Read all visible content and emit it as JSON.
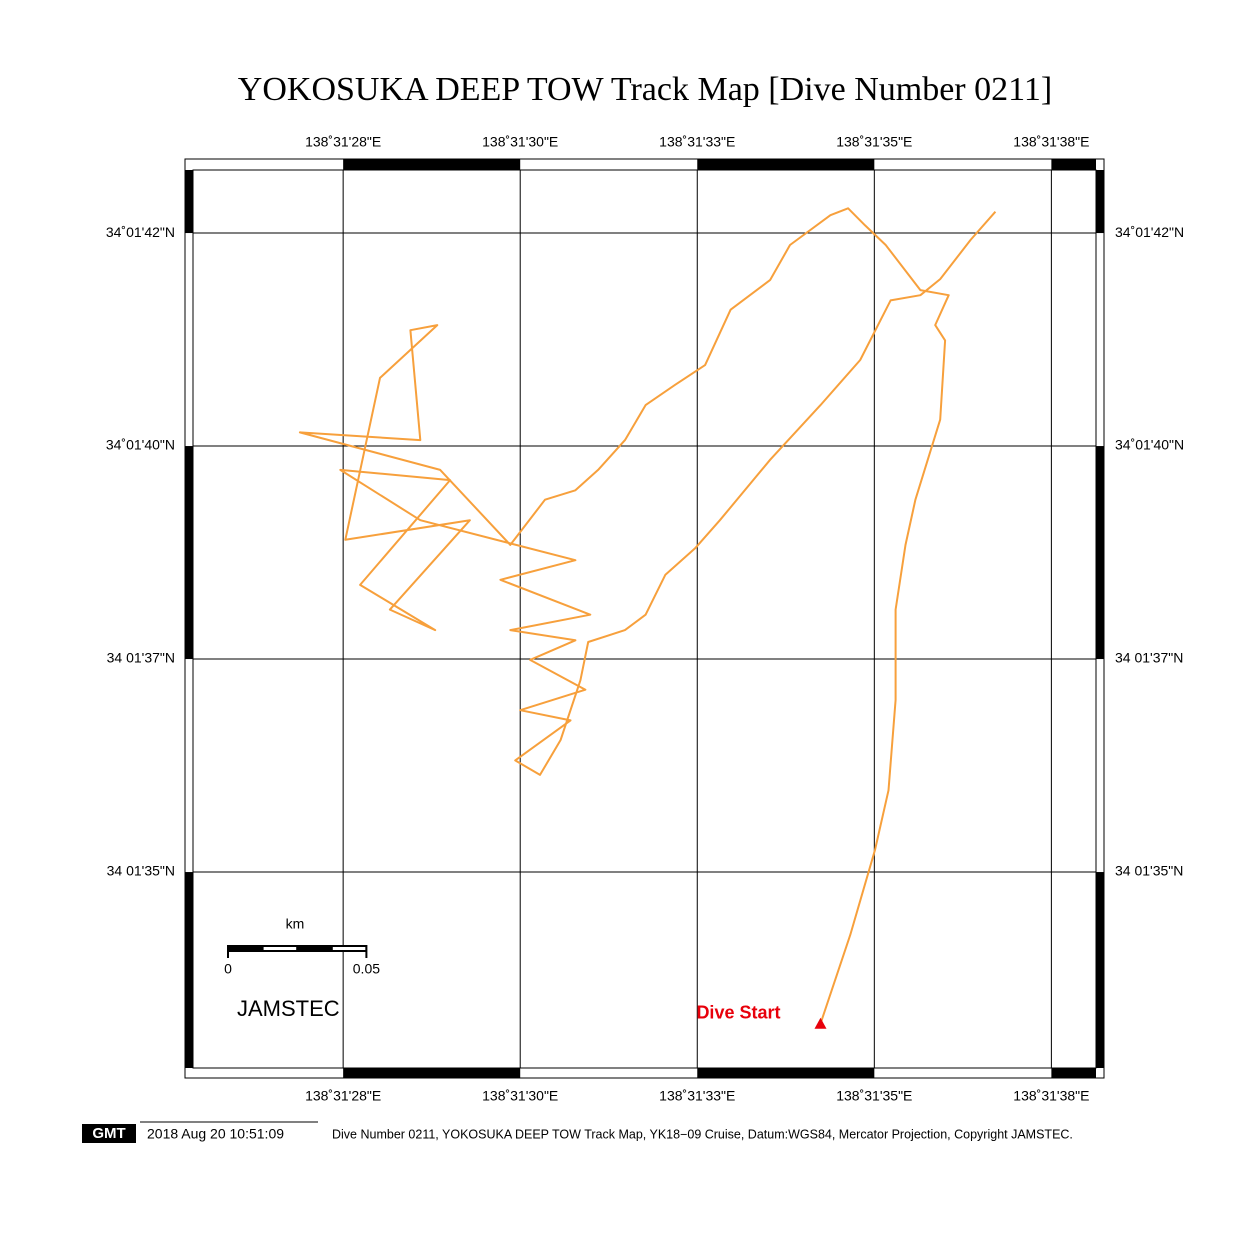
{
  "title": "YOKOSUKA DEEP TOW Track Map [Dive Number 0211]",
  "lonlim": [
    25.38,
    38.13
  ],
  "latlim": [
    32.7,
    43.24
  ],
  "lonticks": [
    {
      "value": 27.5,
      "label": "138˚31'28\"E"
    },
    {
      "value": 30,
      "label": "138˚31'30\"E"
    },
    {
      "value": 32.5,
      "label": "138˚31'33\"E"
    },
    {
      "value": 35,
      "label": "138˚31'35\"E"
    },
    {
      "value": 37.5,
      "label": "138˚31'38\"E"
    }
  ],
  "latticks": [
    {
      "value": 42.5,
      "label": "34˚01'42\"N"
    },
    {
      "value": 40,
      "label": "34˚01'40\"N"
    },
    {
      "value": 37.5,
      "label": "34 01'37\"N"
    },
    {
      "value": 35,
      "label": "34 01'35\"N"
    }
  ],
  "grid": true,
  "track": {
    "color": "#f7a03c",
    "lon": [
      34.24,
      34.66,
      35.01,
      35.2,
      35.3,
      35.3,
      35.44,
      35.58,
      35.93,
      36.0,
      35.86,
      36.05,
      35.65,
      35.16,
      34.87,
      34.63,
      34.38,
      33.81,
      33.53,
      32.97,
      32.61,
      32.19,
      31.77,
      31.48,
      31.1,
      30.78,
      30.35,
      29.86,
      28.87,
      26.89,
      28.59,
      28.45,
      28.83,
      28.02,
      27.53,
      29.29,
      28.16,
      28.8,
      27.74,
      29.01,
      27.46,
      28.59,
      30.78,
      29.72,
      30.99,
      29.86,
      30.78,
      30.14,
      30.92,
      30.0,
      30.71,
      29.93,
      30.28,
      30.57,
      30.85,
      30.96,
      31.48,
      31.77,
      32.05,
      32.47,
      32.82,
      33.53,
      34.24,
      34.8,
      35.23,
      35.65,
      35.93,
      36.36,
      36.71
    ],
    "lat": [
      33.22,
      34.26,
      35.26,
      35.96,
      37.02,
      38.08,
      38.84,
      39.37,
      40.31,
      41.24,
      41.42,
      41.77,
      41.83,
      42.36,
      42.59,
      42.79,
      42.71,
      42.36,
      41.95,
      41.6,
      40.95,
      40.72,
      40.48,
      40.07,
      39.72,
      39.48,
      39.37,
      38.84,
      39.72,
      40.16,
      40.07,
      41.36,
      41.42,
      40.8,
      38.9,
      39.13,
      38.08,
      37.84,
      38.37,
      39.6,
      39.72,
      39.13,
      38.66,
      38.43,
      38.02,
      37.84,
      37.72,
      37.49,
      37.14,
      36.9,
      36.78,
      36.31,
      36.14,
      36.55,
      37.25,
      37.7,
      37.84,
      38.02,
      38.49,
      38.8,
      39.13,
      39.84,
      40.48,
      41.01,
      41.71,
      41.77,
      41.96,
      42.42,
      42.75
    ]
  },
  "start_label": "Dive Start",
  "start_color": "#e8000b",
  "scale": {
    "unit": "km",
    "ticks": [
      0,
      0.05
    ]
  },
  "organization": "JAMSTEC",
  "logo": "GMT",
  "timestamp": "2018 Aug 20 10:51:09",
  "caption": "Dive Number 0211, YOKOSUKA DEEP TOW Track Map, YK18−09 Cruise, Datum:WGS84, Mercator Projection, Copyright JAMSTEC."
}
